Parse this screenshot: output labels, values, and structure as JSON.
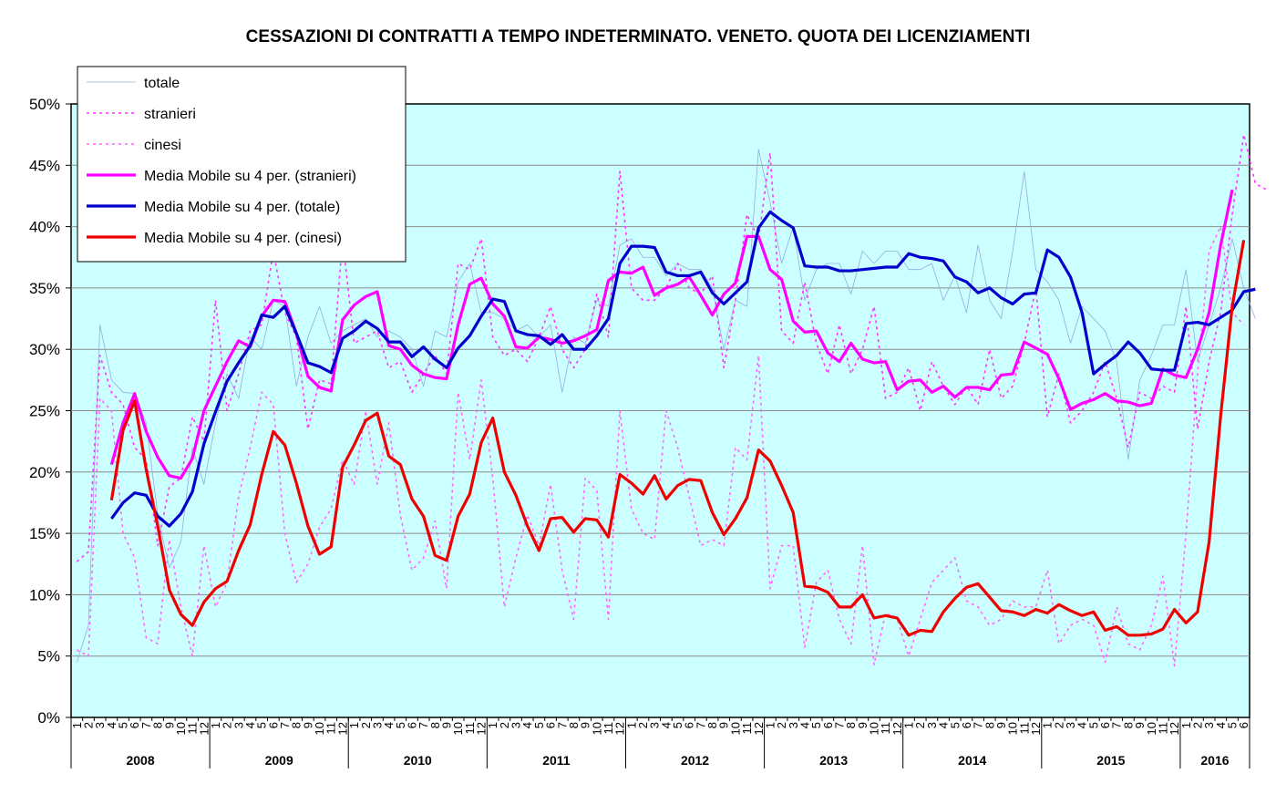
{
  "chart_data": {
    "type": "line",
    "title": "CESSAZIONI DI CONTRATTI A TEMPO INDETERMINATO. VENETO. QUOTA DEI LICENZIAMENTI",
    "ylim": [
      0,
      50
    ],
    "y_ticks": [
      "0%",
      "5%",
      "10%",
      "15%",
      "20%",
      "25%",
      "30%",
      "35%",
      "40%",
      "45%",
      "50%"
    ],
    "years": [
      "2008",
      "2009",
      "2010",
      "2011",
      "2012",
      "2013",
      "2014",
      "2015",
      "2016"
    ],
    "months_per_year": [
      12,
      12,
      12,
      12,
      12,
      12,
      12,
      12,
      6
    ],
    "month_labels": [
      "1",
      "2",
      "3",
      "4",
      "5",
      "6",
      "7",
      "8",
      "9",
      "10",
      "11",
      "12"
    ],
    "background_color": "#ccffff",
    "grid": true,
    "legend_position": "top-left",
    "series": [
      {
        "name": "totale",
        "style": "thin",
        "color": "#8fa3d9",
        "values": [
          4.5,
          7.5,
          32,
          27.5,
          26.5,
          26.4,
          24,
          16.5,
          12.2,
          14.3,
          22,
          19,
          24,
          28,
          26,
          31,
          30,
          34,
          33.5,
          27,
          31,
          33.5,
          30.5,
          31.5,
          32,
          32.5,
          31,
          31.5,
          31,
          30,
          27,
          31.5,
          31,
          35.5,
          37,
          33,
          33,
          32.5,
          31.5,
          32,
          31,
          32,
          26.5,
          31,
          30.5,
          34,
          33.5,
          38.5,
          39,
          37.5,
          37.5,
          36,
          37,
          36.5,
          36.5,
          35,
          30,
          34,
          33.5,
          46.3,
          42,
          37,
          40,
          34,
          36.5,
          37,
          37,
          34.5,
          38,
          37,
          38,
          38,
          36.5,
          36.5,
          37,
          34,
          36,
          33,
          38.5,
          34,
          32.5,
          38,
          44.5,
          36.5,
          35.5,
          34,
          30.5,
          33.5,
          32.5,
          31.5,
          29,
          21,
          27.5,
          29.5,
          32,
          32,
          36.5,
          29,
          32,
          35,
          39,
          35,
          32.5
        ]
      },
      {
        "name": "stranieri",
        "style": "dotted",
        "color": "#ff33ff",
        "values": [
          12.7,
          13.5,
          29.5,
          26.5,
          25.5,
          22,
          21,
          14,
          18.8,
          19.5,
          24.5,
          22.5,
          34,
          25,
          28,
          31.5,
          32,
          38,
          33,
          31,
          23.5,
          27.5,
          27.2,
          39,
          30.5,
          31,
          31.5,
          28.5,
          29,
          26.5,
          28,
          29.5,
          28,
          37,
          36.5,
          39,
          31,
          29.5,
          30,
          29,
          31,
          33.5,
          30,
          28.5,
          30,
          34.5,
          31,
          44.5,
          35,
          34,
          34,
          35,
          37,
          35,
          34.5,
          36,
          28.5,
          34,
          41,
          39,
          46,
          31.5,
          30.5,
          35.5,
          30.5,
          28,
          32,
          28,
          30,
          33.5,
          26,
          26.5,
          28.5,
          25,
          29,
          27,
          25.5,
          27,
          25.5,
          30,
          26,
          27,
          30.5,
          35,
          24.5,
          28,
          24,
          25,
          26.5,
          29,
          26,
          22,
          26.5,
          26,
          27,
          26.5,
          33.5,
          23.5,
          29,
          33,
          41,
          47.5,
          43.5,
          43
        ]
      },
      {
        "name": "cinesi",
        "style": "dotted",
        "color": "#ff66ff",
        "values": [
          5.5,
          5,
          26,
          25,
          15,
          13,
          6.5,
          6,
          14.5,
          9,
          5,
          14,
          9,
          11,
          18,
          22,
          26.5,
          25.5,
          15,
          11,
          12.5,
          15.5,
          17,
          21,
          19,
          25,
          19,
          24,
          16.5,
          12,
          13,
          16,
          10.5,
          26.5,
          21,
          27.5,
          19.5,
          9,
          13,
          16.5,
          14,
          19,
          12,
          8,
          19.5,
          18.5,
          8,
          25,
          17,
          15,
          14.5,
          25,
          22,
          18,
          14,
          14.5,
          14,
          22,
          21,
          29.5,
          10.5,
          14,
          14,
          5.7,
          11,
          12,
          8,
          6,
          14,
          4.3,
          8.5,
          8,
          5,
          8,
          11,
          12,
          13,
          9.5,
          9,
          7.5,
          8,
          9.5,
          9,
          9,
          12,
          6,
          7.5,
          8,
          7.5,
          4.5,
          9,
          6,
          5.5,
          7.5,
          11.5,
          4.2,
          15,
          28,
          38,
          40,
          33,
          32
        ]
      },
      {
        "name": "Media Mobile su 4 per. (stranieri)",
        "style": "thick",
        "color": "#ff00ff",
        "values": [
          null,
          null,
          null,
          20.6,
          24,
          26.4,
          23.3,
          21.2,
          19.7,
          19.5,
          21.1,
          25,
          27,
          29,
          30.7,
          30.2,
          32.7,
          34,
          33.9,
          31.3,
          27.8,
          26.9,
          26.6,
          32.4,
          33.6,
          34.3,
          34.7,
          30.3,
          30,
          28.7,
          28,
          27.7,
          27.6,
          32,
          35.3,
          35.8,
          33.7,
          32.7,
          30.2,
          30.1,
          31,
          30.8,
          30.5,
          30.7,
          31.1,
          31.6,
          35.6,
          36.3,
          36.2,
          36.7,
          34.4,
          35,
          35.3,
          35.9,
          34.4,
          32.8,
          34.5,
          35.4,
          39.2,
          39.2,
          36.5,
          35.7,
          32.3,
          31.4,
          31.5,
          29.7,
          29,
          30.5,
          29.2,
          28.9,
          29,
          26.7,
          27.4,
          27.5,
          26.5,
          27,
          26.1,
          26.9,
          26.9,
          26.7,
          27.9,
          28,
          30.6,
          30.1,
          29.6,
          27.6,
          25.1,
          25.6,
          25.9,
          26.4,
          25.8,
          25.7,
          25.4,
          25.6,
          28.4,
          27.9,
          27.7,
          30,
          33,
          38.5,
          43
        ]
      },
      {
        "name": "Media Mobile su 4 per. (totale)",
        "style": "thick",
        "color": "#0000cc",
        "values": [
          null,
          null,
          null,
          16.2,
          17.5,
          18.3,
          18.1,
          16.4,
          15.6,
          16.6,
          18.4,
          22.3,
          24.9,
          27.4,
          28.9,
          30.3,
          32.8,
          32.6,
          33.5,
          31.3,
          28.9,
          28.6,
          28.1,
          30.9,
          31.5,
          32.3,
          31.7,
          30.6,
          30.6,
          29.4,
          30.2,
          29.2,
          28.5,
          30.1,
          31.1,
          32.7,
          34.1,
          33.9,
          31.5,
          31.2,
          31.1,
          30.4,
          31.2,
          30,
          30,
          31.1,
          32.5,
          37,
          38.4,
          38.4,
          38.3,
          36.3,
          36,
          36,
          36.3,
          34.6,
          33.7,
          34.6,
          35.5,
          39.9,
          41.2,
          40.5,
          39.9,
          36.8,
          36.7,
          36.7,
          36.4,
          36.4,
          36.5,
          36.6,
          36.7,
          36.7,
          37.8,
          37.5,
          37.4,
          37.2,
          35.9,
          35.5,
          34.6,
          35,
          34.2,
          33.7,
          34.5,
          34.6,
          38.1,
          37.5,
          35.9,
          33,
          28,
          28.8,
          29.5,
          30.6,
          29.7,
          28.4,
          28.3,
          28.3,
          32.1,
          32.2,
          32,
          32.6,
          33.2,
          34.7,
          34.9
        ]
      },
      {
        "name": "Media Mobile su 4 per. (cinesi)",
        "style": "thick",
        "color": "#ee0000",
        "values": [
          null,
          null,
          null,
          17.7,
          23.4,
          25.8,
          20.2,
          15.6,
          10.4,
          8.4,
          7.5,
          9.4,
          10.5,
          11.1,
          13.6,
          15.7,
          19.8,
          23.3,
          22.2,
          19.1,
          15.6,
          13.3,
          13.9,
          20.4,
          22.2,
          24.2,
          24.8,
          21.3,
          20.6,
          17.8,
          16.4,
          13.2,
          12.8,
          16.4,
          18.2,
          22.4,
          24.4,
          20,
          18.1,
          15.6,
          13.6,
          16.2,
          16.3,
          15.1,
          16.2,
          16.1,
          14.7,
          19.8,
          19.1,
          18.2,
          19.7,
          17.8,
          18.9,
          19.4,
          19.3,
          16.7,
          14.9,
          16.2,
          17.9,
          21.8,
          20.9,
          18.9,
          16.7,
          10.7,
          10.6,
          10.2,
          9,
          9,
          10,
          8.1,
          8.3,
          8.1,
          6.7,
          7.1,
          7,
          8.6,
          9.7,
          10.6,
          10.9,
          9.8,
          8.7,
          8.6,
          8.3,
          8.8,
          8.5,
          9.2,
          8.7,
          8.3,
          8.6,
          7.1,
          7.4,
          6.7,
          6.7,
          6.8,
          7.2,
          8.8,
          7.7,
          8.6,
          14.3,
          24.6,
          33.5,
          38.9
        ]
      }
    ]
  }
}
